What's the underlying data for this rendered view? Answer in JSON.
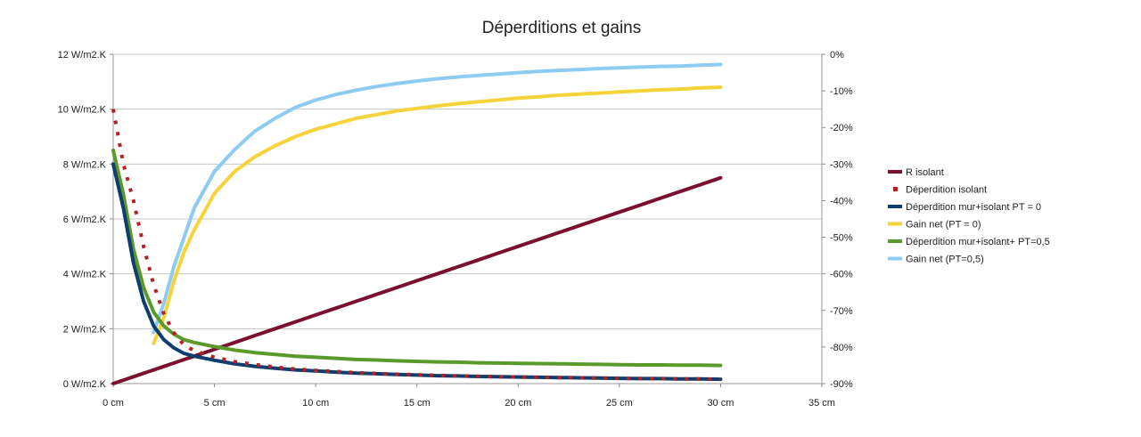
{
  "chart_data": {
    "type": "line",
    "title": "Déperditions et gains",
    "xlabel": "",
    "ylabel": "",
    "y2label": "",
    "xlim": [
      0,
      35
    ],
    "ylim": [
      0,
      12
    ],
    "y2lim": [
      -90,
      0
    ],
    "grid": true,
    "legend_position": "right",
    "x_ticks": [
      "0 cm",
      "5 cm",
      "10 cm",
      "15 cm",
      "20 cm",
      "25 cm",
      "30 cm",
      "35 cm"
    ],
    "y_ticks": [
      "0 W/m2.K",
      "2 W/m2.K",
      "4 W/m2.K",
      "6 W/m2.K",
      "8 W/m2.K",
      "10 W/m2.K",
      "12 W/m2.K"
    ],
    "y2_ticks": [
      "-90%",
      "-80%",
      "-70%",
      "-60%",
      "-50%",
      "-40%",
      "-30%",
      "-20%",
      "-10%",
      "0%"
    ],
    "x": [
      0,
      0.5,
      1,
      1.5,
      2,
      2.5,
      3,
      3.5,
      4,
      5,
      6,
      7,
      8,
      9,
      10,
      11,
      12,
      13,
      14,
      15,
      16,
      17,
      18,
      19,
      20,
      21,
      22,
      23,
      24,
      25,
      26,
      27,
      28,
      29,
      30
    ],
    "series": [
      {
        "name": "R isolant",
        "axis": "left",
        "color": "#7b0f2e",
        "style": "line",
        "values": [
          0,
          0.125,
          0.25,
          0.375,
          0.5,
          0.625,
          0.75,
          0.875,
          1.0,
          1.25,
          1.5,
          1.75,
          2.0,
          2.25,
          2.5,
          2.75,
          3.0,
          3.25,
          3.5,
          3.75,
          4.0,
          4.25,
          4.5,
          4.75,
          5.0,
          5.25,
          5.5,
          5.75,
          6.0,
          6.25,
          6.5,
          6.75,
          7.0,
          7.25,
          7.5
        ]
      },
      {
        "name": "Déperdition isolant",
        "axis": "left",
        "color": "#b22222",
        "style": "dotted",
        "values": [
          10.0,
          8.0,
          6.67,
          5.0,
          3.6,
          2.55,
          1.85,
          1.4,
          1.2,
          0.96,
          0.8,
          0.69,
          0.6,
          0.53,
          0.48,
          0.44,
          0.4,
          0.37,
          0.34,
          0.32,
          0.3,
          0.28,
          0.27,
          0.25,
          0.24,
          0.23,
          0.22,
          0.21,
          0.2,
          0.19,
          0.18,
          0.18,
          0.17,
          0.17,
          0.16
        ]
      },
      {
        "name": "Déperdition mur+isolant PT = 0",
        "axis": "left",
        "color": "#0e3d6e",
        "style": "line",
        "values": [
          8.0,
          6.4,
          4.4,
          3.0,
          2.1,
          1.6,
          1.3,
          1.1,
          1.0,
          0.85,
          0.72,
          0.63,
          0.56,
          0.5,
          0.46,
          0.42,
          0.38,
          0.36,
          0.33,
          0.31,
          0.29,
          0.28,
          0.26,
          0.25,
          0.24,
          0.23,
          0.22,
          0.21,
          0.2,
          0.19,
          0.18,
          0.18,
          0.17,
          0.17,
          0.16
        ]
      },
      {
        "name": "Gain net (PT = 0)",
        "axis": "right",
        "color": "#f5d33a",
        "style": "line",
        "values": [
          null,
          null,
          null,
          null,
          -79,
          -72,
          -62,
          -54,
          -48,
          -38,
          -32,
          -28,
          -25,
          -22.5,
          -20.5,
          -19,
          -17.5,
          -16.5,
          -15.5,
          -14.8,
          -14.1,
          -13.5,
          -13,
          -12.5,
          -12,
          -11.6,
          -11.2,
          -10.9,
          -10.6,
          -10.3,
          -10,
          -9.7,
          -9.5,
          -9.2,
          -9
        ]
      },
      {
        "name": "Déperdition mur+isolant+ PT=0,5",
        "axis": "left",
        "color": "#5a9a2a",
        "style": "line",
        "values": [
          8.5,
          6.9,
          4.9,
          3.5,
          2.6,
          2.1,
          1.8,
          1.6,
          1.5,
          1.35,
          1.22,
          1.13,
          1.06,
          1.0,
          0.96,
          0.92,
          0.88,
          0.86,
          0.83,
          0.81,
          0.79,
          0.78,
          0.76,
          0.75,
          0.74,
          0.73,
          0.72,
          0.71,
          0.7,
          0.69,
          0.68,
          0.68,
          0.67,
          0.67,
          0.66
        ]
      },
      {
        "name": "Gain net (PT=0,5)",
        "axis": "right",
        "color": "#8ecbf0",
        "style": "line",
        "values": [
          null,
          null,
          null,
          null,
          -76,
          -68,
          -58,
          -50,
          -42,
          -32,
          -26,
          -21,
          -17.5,
          -14.5,
          -12.5,
          -11,
          -9.8,
          -8.8,
          -8,
          -7.3,
          -6.7,
          -6.2,
          -5.8,
          -5.4,
          -5,
          -4.7,
          -4.4,
          -4.2,
          -3.9,
          -3.7,
          -3.5,
          -3.3,
          -3.2,
          -3,
          -2.8
        ]
      }
    ]
  }
}
